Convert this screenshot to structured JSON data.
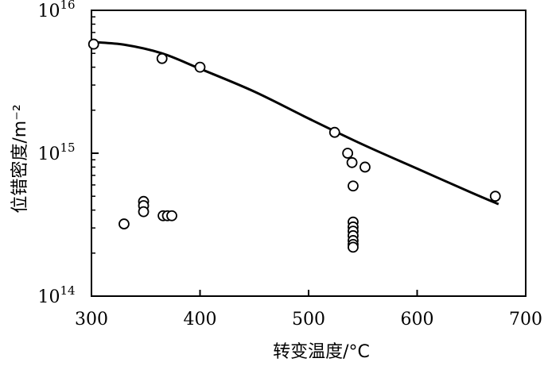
{
  "chart_data": {
    "type": "scatter",
    "title": "",
    "xlabel": "转变温度/°C",
    "ylabel": "位错密度/m⁻²",
    "xlim": [
      300,
      700
    ],
    "ylim": [
      100000000000000.0,
      1e+16
    ],
    "yscale": "log",
    "grid": false,
    "x_ticks": [
      "300",
      "400",
      "500",
      "600",
      "700"
    ],
    "y_ticks": [
      {
        "value": 100000000000000.0,
        "base": "10",
        "exp": "14"
      },
      {
        "value": 1000000000000000.0,
        "base": "10",
        "exp": "15"
      },
      {
        "value": 1e+16,
        "base": "10",
        "exp": "16"
      }
    ],
    "series": [
      {
        "kind": "points",
        "marker": "open-circle",
        "points": [
          {
            "x": 302,
            "y": 5800000000000000.0
          },
          {
            "x": 365,
            "y": 4600000000000000.0
          },
          {
            "x": 400,
            "y": 4000000000000000.0
          },
          {
            "x": 524,
            "y": 1400000000000000.0
          },
          {
            "x": 536,
            "y": 1000000000000000.0
          },
          {
            "x": 540,
            "y": 860000000000000.0
          },
          {
            "x": 552,
            "y": 800000000000000.0
          },
          {
            "x": 541,
            "y": 590000000000000.0
          },
          {
            "x": 330,
            "y": 320000000000000.0
          },
          {
            "x": 348,
            "y": 460000000000000.0
          },
          {
            "x": 348,
            "y": 430000000000000.0
          },
          {
            "x": 348,
            "y": 390000000000000.0
          },
          {
            "x": 366,
            "y": 365000000000000.0
          },
          {
            "x": 370,
            "y": 365000000000000.0
          },
          {
            "x": 374,
            "y": 365000000000000.0
          },
          {
            "x": 541,
            "y": 330000000000000.0
          },
          {
            "x": 541,
            "y": 305000000000000.0
          },
          {
            "x": 541,
            "y": 285000000000000.0
          },
          {
            "x": 541,
            "y": 265000000000000.0
          },
          {
            "x": 541,
            "y": 245000000000000.0
          },
          {
            "x": 541,
            "y": 230000000000000.0
          },
          {
            "x": 541,
            "y": 220000000000000.0
          },
          {
            "x": 672,
            "y": 500000000000000.0
          }
        ]
      },
      {
        "kind": "curve",
        "points": [
          {
            "x": 300,
            "y": 6000000000000000.0
          },
          {
            "x": 330,
            "y": 5750000000000000.0
          },
          {
            "x": 365,
            "y": 5000000000000000.0
          },
          {
            "x": 400,
            "y": 3900000000000000.0
          },
          {
            "x": 450,
            "y": 2700000000000000.0
          },
          {
            "x": 500,
            "y": 1750000000000000.0
          },
          {
            "x": 550,
            "y": 1150000000000000.0
          },
          {
            "x": 600,
            "y": 780000000000000.0
          },
          {
            "x": 650,
            "y": 530000000000000.0
          },
          {
            "x": 675,
            "y": 440000000000000.0
          }
        ]
      }
    ]
  }
}
